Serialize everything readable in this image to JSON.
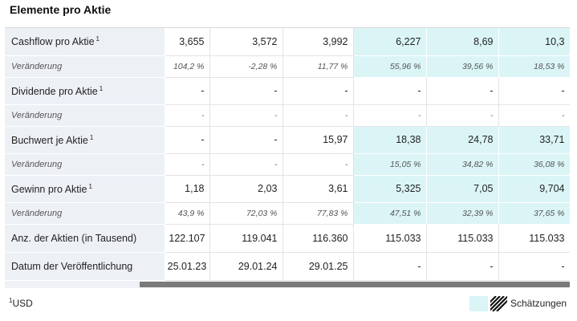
{
  "section_title": "Elemente pro Aktie",
  "rows": [
    {
      "label": "Cashflow pro Aktie",
      "sup": "1",
      "type": "main",
      "values": [
        "3,655",
        "3,572",
        "3,992",
        "6,227",
        "8,69",
        "10,3"
      ]
    },
    {
      "label": "Veränderung",
      "sup": "",
      "type": "change",
      "values": [
        "104,2 %",
        "-2,28 %",
        "11,77 %",
        "55,96 %",
        "39,56 %",
        "18,53 %"
      ]
    },
    {
      "label": "Dividende pro Aktie",
      "sup": "1",
      "type": "main",
      "values": [
        "-",
        "-",
        "-",
        "-",
        "-",
        "-"
      ]
    },
    {
      "label": "Veränderung",
      "sup": "",
      "type": "change",
      "values": [
        "-",
        "-",
        "-",
        "-",
        "-",
        "-"
      ]
    },
    {
      "label": "Buchwert je Aktie",
      "sup": "1",
      "type": "main",
      "values": [
        "-",
        "-",
        "15,97",
        "18,38",
        "24,78",
        "33,71"
      ]
    },
    {
      "label": "Veränderung",
      "sup": "",
      "type": "change",
      "values": [
        "-",
        "-",
        "-",
        "15,05 %",
        "34,82 %",
        "36,08 %"
      ]
    },
    {
      "label": "Gewinn pro Aktie",
      "sup": "1",
      "type": "main",
      "values": [
        "1,18",
        "2,03",
        "3,61",
        "5,325",
        "7,05",
        "9,704"
      ]
    },
    {
      "label": "Veränderung",
      "sup": "",
      "type": "change",
      "values": [
        "43,9 %",
        "72,03 %",
        "77,83 %",
        "47,51 %",
        "32,39 %",
        "37,65 %"
      ]
    },
    {
      "label": "Anz. der Aktien (in Tausend)",
      "sup": "",
      "type": "main",
      "values": [
        "122.107",
        "119.041",
        "116.360",
        "115.033",
        "115.033",
        "115.033"
      ]
    },
    {
      "label": "Datum der Veröffentlichung",
      "sup": "",
      "type": "main",
      "values": [
        "25.01.23",
        "29.01.24",
        "29.01.25",
        "-",
        "-",
        "-"
      ]
    }
  ],
  "estimate_highlight": {
    "columns": [
      3,
      4,
      5
    ],
    "rows": [
      0,
      1,
      4,
      5,
      6,
      7
    ]
  },
  "footnote": {
    "marker": "1",
    "text": "USD"
  },
  "legend": {
    "label": "Schätzungen",
    "estimate_color": "#dbf5f7"
  }
}
